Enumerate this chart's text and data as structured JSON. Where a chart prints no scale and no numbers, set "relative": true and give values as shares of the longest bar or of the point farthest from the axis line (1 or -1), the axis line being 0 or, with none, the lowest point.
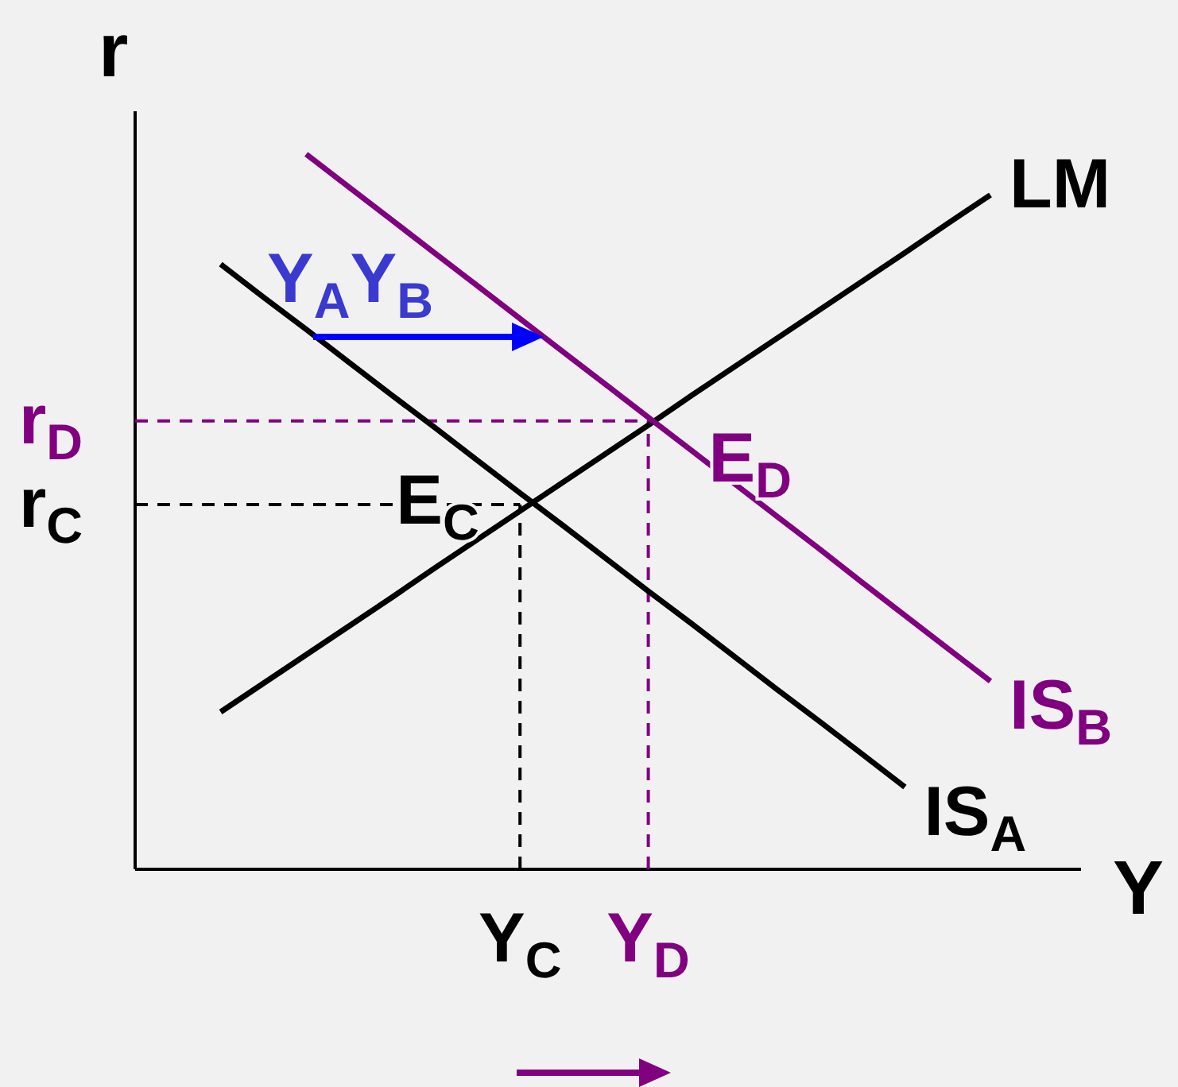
{
  "chart_data": {
    "type": "line",
    "relative": true,
    "xlabel": "Y",
    "ylabel": "r",
    "categories": [
      null,
      null,
      null,
      null,
      null,
      null,
      null,
      null,
      null,
      "Y$_{C}$",
      null,
      null,
      "Y$_{D}$",
      null,
      null,
      null,
      null,
      null,
      null,
      null,
      null,
      null,
      null
    ],
    "series": [
      {
        "name": "LM",
        "color": "#000000",
        "values": [
          null,
          null,
          0.22,
          0.26,
          0.3,
          0.34,
          0.38,
          0.421,
          0.461,
          0.501,
          0.541,
          0.581,
          0.621,
          0.662,
          0.702,
          0.742,
          0.782,
          0.822,
          0.862,
          0.903,
          0.943,
          null,
          null
        ]
      },
      {
        "name": "IS$_{A}$",
        "color": "#000000",
        "values": [
          null,
          null,
          0.846,
          0.8,
          0.755,
          0.709,
          0.663,
          0.618,
          0.572,
          0.526,
          0.481,
          0.435,
          0.389,
          0.344,
          0.298,
          0.252,
          0.207,
          0.161,
          0.115,
          null,
          null,
          null,
          null
        ]
      },
      {
        "name": "IS$_{B}$",
        "color": "#800080",
        "values": [
          null,
          null,
          null,
          null,
          1,
          0.954,
          0.908,
          0.862,
          0.816,
          0.77,
          0.724,
          0.678,
          0.632,
          0.586,
          0.54,
          0.494,
          0.448,
          0.401,
          0.355,
          0.309,
          0.263,
          null,
          null
        ]
      }
    ],
    "ref_lines": [
      {
        "axis": "y",
        "value": 0.51,
        "label": "r$_{C}$",
        "color": "#000000",
        "line_style": "dashed"
      },
      {
        "axis": "y",
        "value": 0.627,
        "label": "r$_{D}$",
        "color": "#800080",
        "line_style": "dashed"
      },
      {
        "axis": "x",
        "value": "Y$_{C}$",
        "color": "#000000",
        "line_style": "dashed"
      },
      {
        "axis": "x",
        "value": "Y$_{D}$",
        "color": "#800080",
        "line_style": "dashed"
      }
    ],
    "annotations": [
      {
        "text": "E$_{C}$",
        "x": "Y$_{C}$",
        "y": 0.51
      },
      {
        "text": "E$_{D}$",
        "x": "Y$_{D}$",
        "y": 0.627
      },
      "Y$_{A}$Y$_{B}$"
    ]
  }
}
